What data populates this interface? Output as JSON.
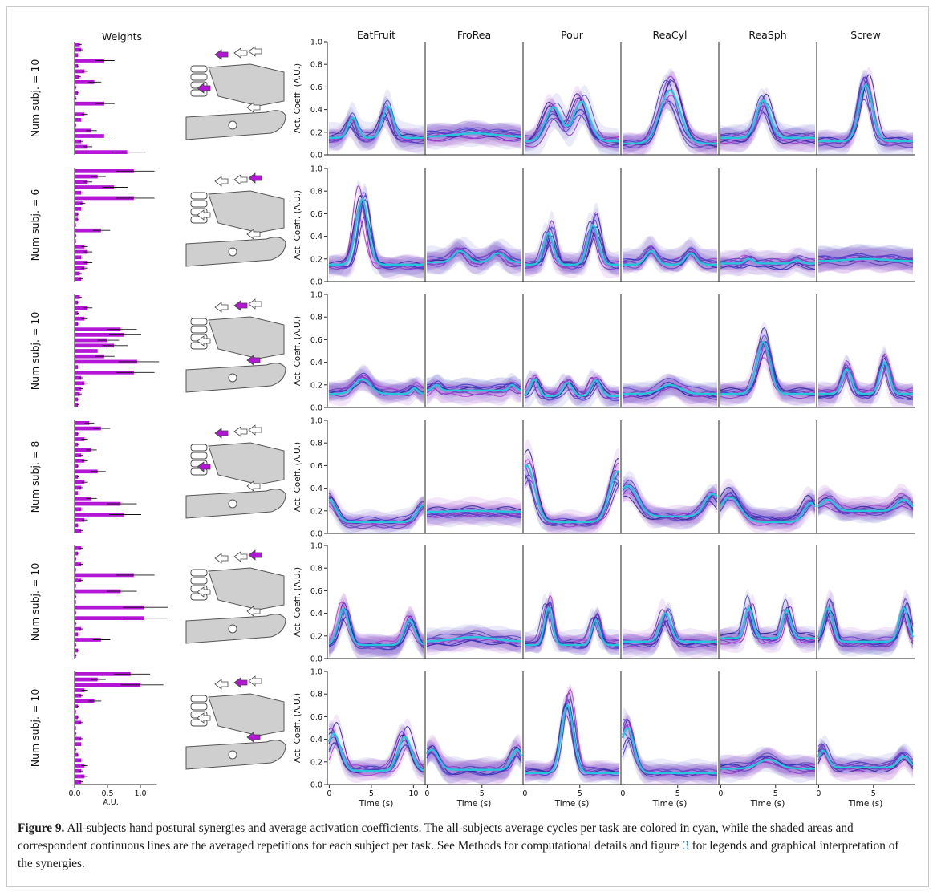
{
  "figure": {
    "weights_title": "Weights",
    "weights_xlabel": "A.U.",
    "weights_xticks": [
      "0.0",
      "0.5",
      "1.0"
    ],
    "row_labels": [
      "Num subj. = 10",
      "Num subj. = 6",
      "Num subj. = 10",
      "Num subj. = 8",
      "Num subj. = 10",
      "Num subj. = 10"
    ],
    "tasks": [
      "EatFruit",
      "FroRea",
      "Pour",
      "ReaCyl",
      "ReaSph",
      "Screw"
    ],
    "ylabel": "Act. Coeff. (A.U.)",
    "yticks": [
      "0.0",
      "0.2",
      "0.4",
      "0.6",
      "0.8",
      "1.0"
    ],
    "xlabel": "Time (s)",
    "xticks_eatfruit": [
      "0",
      "5",
      "10"
    ],
    "xticks_other": [
      "0",
      "5"
    ]
  },
  "caption": {
    "label": "Figure 9.",
    "text_before_ref": " All-subjects hand postural synergies and average activation coefficients. The all-subjects average cycles per task are colored in cyan, while the shaded areas and correspondent continuous lines are the averaged repetitions for each subject per task. See Methods for computational details and figure ",
    "ref": "3",
    "text_after_ref": " for legends and graphical interpretation of the synergies."
  },
  "colors": {
    "weight_bar": "#b416d6",
    "mean_curve": "#27c4dc",
    "subject_lines": [
      "#1f1f8f",
      "#3b3bc9",
      "#6a2bbf",
      "#9b27c9",
      "#c22fd0",
      "#4e4eb8"
    ],
    "band_fill": "#5b5bc8"
  },
  "chart_data": [
    {
      "type": "line",
      "row": 1,
      "tasks": [
        "EatFruit",
        "FroRea",
        "Pour",
        "ReaCyl",
        "ReaSph",
        "Screw"
      ],
      "mean_peaks": [
        0.4,
        0.18,
        0.45,
        0.57,
        0.48,
        0.62
      ],
      "ylim": [
        0,
        1
      ],
      "ylabel": "Act. Coeff. (A.U.)"
    },
    {
      "type": "line",
      "row": 2,
      "tasks": [
        "EatFruit",
        "FroRea",
        "Pour",
        "ReaCyl",
        "ReaSph",
        "Screw"
      ],
      "mean_peaks": [
        0.72,
        0.26,
        0.48,
        0.26,
        0.18,
        0.18
      ],
      "ylim": [
        0,
        1
      ],
      "ylabel": "Act. Coeff. (A.U.)"
    },
    {
      "type": "line",
      "row": 3,
      "tasks": [
        "EatFruit",
        "FroRea",
        "Pour",
        "ReaCyl",
        "ReaSph",
        "Screw"
      ],
      "mean_peaks": [
        0.25,
        0.15,
        0.25,
        0.2,
        0.58,
        0.4
      ],
      "ylim": [
        0,
        1
      ],
      "ylabel": "Act. Coeff. (A.U.)"
    },
    {
      "type": "line",
      "row": 4,
      "tasks": [
        "EatFruit",
        "FroRea",
        "Pour",
        "ReaCyl",
        "ReaSph",
        "Screw"
      ],
      "mean_peaks": [
        0.3,
        0.2,
        0.55,
        0.4,
        0.32,
        0.3
      ],
      "ylim": [
        0,
        1
      ],
      "ylabel": "Act. Coeff. (A.U.)"
    },
    {
      "type": "line",
      "row": 5,
      "tasks": [
        "EatFruit",
        "FroRea",
        "Pour",
        "ReaCyl",
        "ReaSph",
        "Screw"
      ],
      "mean_peaks": [
        0.45,
        0.18,
        0.45,
        0.4,
        0.45,
        0.45
      ],
      "ylim": [
        0,
        1
      ],
      "ylabel": "Act. Coeff. (A.U.)"
    },
    {
      "type": "line",
      "row": 6,
      "tasks": [
        "EatFruit",
        "FroRea",
        "Pour",
        "ReaCyl",
        "ReaSph",
        "Screw"
      ],
      "mean_peaks": [
        0.45,
        0.3,
        0.7,
        0.5,
        0.22,
        0.3
      ],
      "ylim": [
        0,
        1
      ],
      "ylabel": "Act. Coeff. (A.U.)"
    }
  ]
}
